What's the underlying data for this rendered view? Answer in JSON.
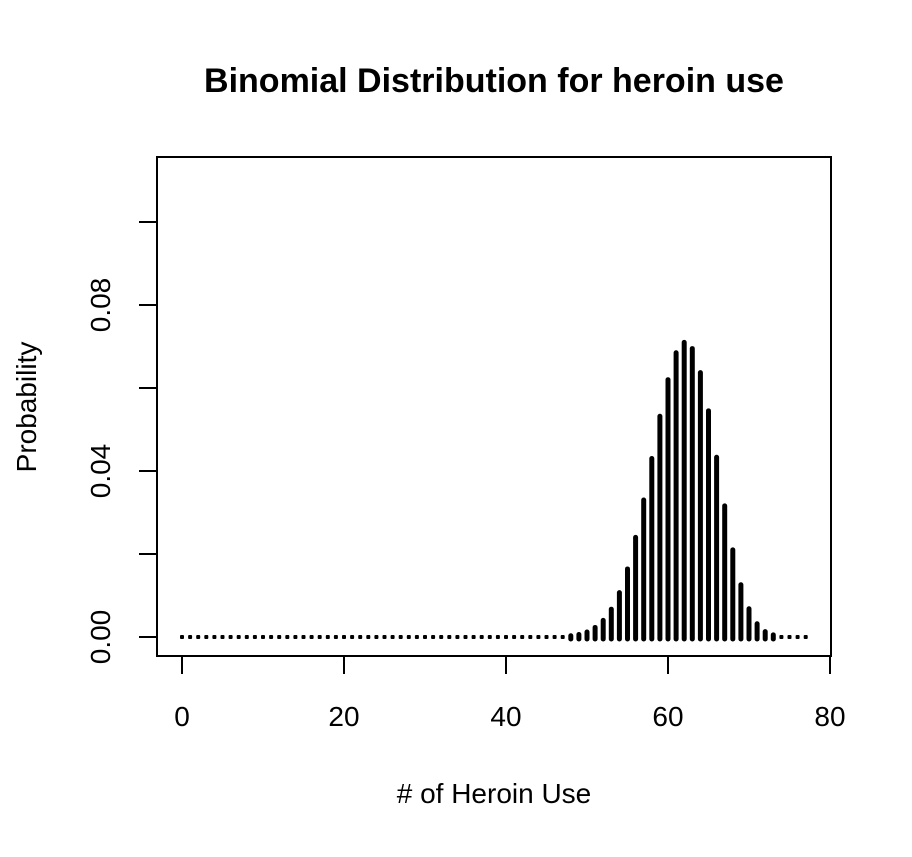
{
  "chart_data": {
    "type": "bar",
    "title": "Binomial Distribution for heroin use",
    "xlabel": "# of Heroin Use",
    "ylabel": "Probability",
    "xlim": [
      0,
      80
    ],
    "ylim": [
      0,
      0.12
    ],
    "x_ticks": [
      0,
      20,
      40,
      60,
      80
    ],
    "x_tick_labels": [
      "0",
      "20",
      "40",
      "60",
      "80"
    ],
    "y_ticks": [
      0,
      0.02,
      0.04,
      0.06,
      0.08,
      0.1
    ],
    "y_tick_labels": [
      "0.00",
      "",
      "0.04",
      "",
      "0.08",
      ""
    ],
    "grid": false,
    "legend": "none",
    "x": [
      0,
      1,
      2,
      3,
      4,
      5,
      6,
      7,
      8,
      9,
      10,
      11,
      12,
      13,
      14,
      15,
      16,
      17,
      18,
      19,
      20,
      21,
      22,
      23,
      24,
      25,
      26,
      27,
      28,
      29,
      30,
      31,
      32,
      33,
      34,
      35,
      36,
      37,
      38,
      39,
      40,
      41,
      42,
      43,
      44,
      45,
      46,
      47,
      48,
      49,
      50,
      51,
      52,
      53,
      54,
      55,
      56,
      57,
      58,
      59,
      60,
      61,
      62,
      63,
      64,
      65,
      66,
      67,
      68,
      69,
      70,
      71,
      72,
      73,
      74,
      75,
      76,
      77
    ],
    "values": [
      0,
      0,
      0,
      0,
      0,
      0,
      0,
      0,
      0,
      0,
      0,
      0,
      0,
      0,
      0,
      0,
      0,
      0,
      0,
      0,
      0,
      0,
      0,
      0,
      0,
      0,
      0,
      0,
      0,
      0,
      0,
      0,
      0,
      0,
      0,
      0,
      0,
      0,
      0,
      0,
      0,
      0,
      0,
      0,
      0,
      0,
      0,
      0,
      0.0003,
      0.0006,
      0.0012,
      0.0023,
      0.004,
      0.0067,
      0.0107,
      0.0164,
      0.024,
      0.033,
      0.043,
      0.0532,
      0.062,
      0.0685,
      0.071,
      0.0695,
      0.0637,
      0.0545,
      0.0433,
      0.0316,
      0.021,
      0.0126,
      0.0068,
      0.0032,
      0.0013,
      0.0005,
      0.0002,
      0.0001,
      0,
      0
    ],
    "colors": {
      "bars": "#000000",
      "axes": "#000000",
      "background": "#ffffff"
    }
  }
}
